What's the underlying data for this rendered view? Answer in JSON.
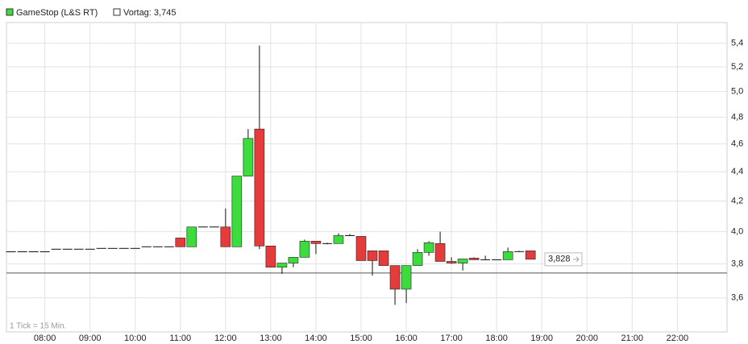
{
  "chart_data": {
    "type": "candlestick",
    "series": [
      {
        "name": "GameStop (L&S RT)",
        "up_color": "#3ddc3d",
        "down_color": "#e53b3b",
        "x": [
          "07:15",
          "07:30",
          "07:45",
          "08:00",
          "08:15",
          "08:30",
          "08:45",
          "09:00",
          "09:15",
          "09:30",
          "09:45",
          "10:00",
          "10:15",
          "10:30",
          "10:45",
          "11:00",
          "11:15",
          "11:30",
          "11:45",
          "12:00",
          "12:15",
          "12:30",
          "12:45",
          "13:00",
          "13:15",
          "13:30",
          "13:45",
          "14:00",
          "14:15",
          "14:30",
          "14:45",
          "15:00",
          "15:15",
          "15:30",
          "15:45",
          "16:00",
          "16:15",
          "16:30",
          "16:45",
          "17:00",
          "17:15",
          "17:30",
          "17:45",
          "18:00",
          "18:15",
          "18:30",
          "18:45"
        ],
        "open": [
          3.874,
          3.874,
          3.874,
          3.874,
          3.89,
          3.89,
          3.89,
          3.89,
          3.895,
          3.895,
          3.895,
          3.895,
          3.905,
          3.905,
          3.905,
          3.96,
          3.905,
          4.03,
          4.03,
          4.03,
          3.905,
          4.37,
          4.71,
          3.91,
          3.78,
          3.805,
          3.84,
          3.94,
          3.925,
          3.925,
          3.975,
          3.97,
          3.88,
          3.88,
          3.79,
          3.65,
          3.79,
          3.87,
          3.925,
          3.815,
          3.805,
          3.835,
          3.825,
          3.825,
          3.825,
          3.875,
          3.88
        ],
        "high": [
          3.874,
          3.874,
          3.874,
          3.874,
          3.89,
          3.89,
          3.89,
          3.89,
          3.895,
          3.895,
          3.895,
          3.895,
          3.905,
          3.905,
          3.905,
          3.96,
          4.03,
          4.03,
          4.03,
          4.15,
          4.37,
          4.71,
          5.38,
          3.91,
          3.805,
          3.84,
          3.95,
          3.94,
          3.93,
          3.99,
          3.985,
          3.97,
          3.88,
          3.88,
          3.79,
          3.79,
          3.89,
          3.94,
          4.0,
          3.84,
          3.83,
          3.84,
          3.85,
          3.825,
          3.9,
          3.88,
          3.88
        ],
        "low": [
          3.874,
          3.874,
          3.874,
          3.874,
          3.89,
          3.89,
          3.89,
          3.89,
          3.895,
          3.895,
          3.895,
          3.895,
          3.905,
          3.905,
          3.905,
          3.905,
          3.905,
          4.03,
          4.03,
          3.905,
          3.905,
          4.37,
          3.89,
          3.78,
          3.74,
          3.78,
          3.84,
          3.86,
          3.92,
          3.925,
          3.975,
          3.82,
          3.73,
          3.79,
          3.56,
          3.57,
          3.79,
          3.85,
          3.815,
          3.8,
          3.76,
          3.825,
          3.825,
          3.825,
          3.825,
          3.875,
          3.828
        ],
        "close": [
          3.874,
          3.874,
          3.874,
          3.874,
          3.89,
          3.89,
          3.89,
          3.89,
          3.895,
          3.895,
          3.895,
          3.895,
          3.905,
          3.905,
          3.905,
          3.905,
          4.03,
          4.03,
          4.03,
          3.905,
          4.37,
          4.64,
          3.91,
          3.78,
          3.805,
          3.84,
          3.94,
          3.925,
          3.925,
          3.975,
          3.975,
          3.82,
          3.82,
          3.79,
          3.65,
          3.79,
          3.87,
          3.93,
          3.815,
          3.805,
          3.83,
          3.825,
          3.825,
          3.825,
          3.875,
          3.875,
          3.828
        ]
      }
    ],
    "last": {
      "value": 3.828,
      "label": "3,828"
    },
    "reference": {
      "name": "Vortag: 3,745",
      "value": 3.745
    },
    "note": "1 Tick = 15 Min.",
    "log_scale": true,
    "grid": true,
    "xlim": [
      "07:09",
      "23:06"
    ],
    "xticks": [
      "08:00",
      "09:00",
      "10:00",
      "11:00",
      "12:00",
      "13:00",
      "14:00",
      "15:00",
      "16:00",
      "17:00",
      "18:00",
      "19:00",
      "20:00",
      "21:00",
      "22:00"
    ],
    "ylim": [
      3.41,
      5.58
    ],
    "yticks": [
      {
        "value": 3.6,
        "label": "3,6"
      },
      {
        "value": 3.8,
        "label": "3,8"
      },
      {
        "value": 4.0,
        "label": "4,0"
      },
      {
        "value": 4.2,
        "label": "4,2"
      },
      {
        "value": 4.4,
        "label": "4,4"
      },
      {
        "value": 4.6,
        "label": "4,6"
      },
      {
        "value": 4.8,
        "label": "4,8"
      },
      {
        "value": 5.0,
        "label": "5,0"
      },
      {
        "value": 5.2,
        "label": "5,2"
      },
      {
        "value": 5.4,
        "label": "5,4"
      }
    ]
  }
}
